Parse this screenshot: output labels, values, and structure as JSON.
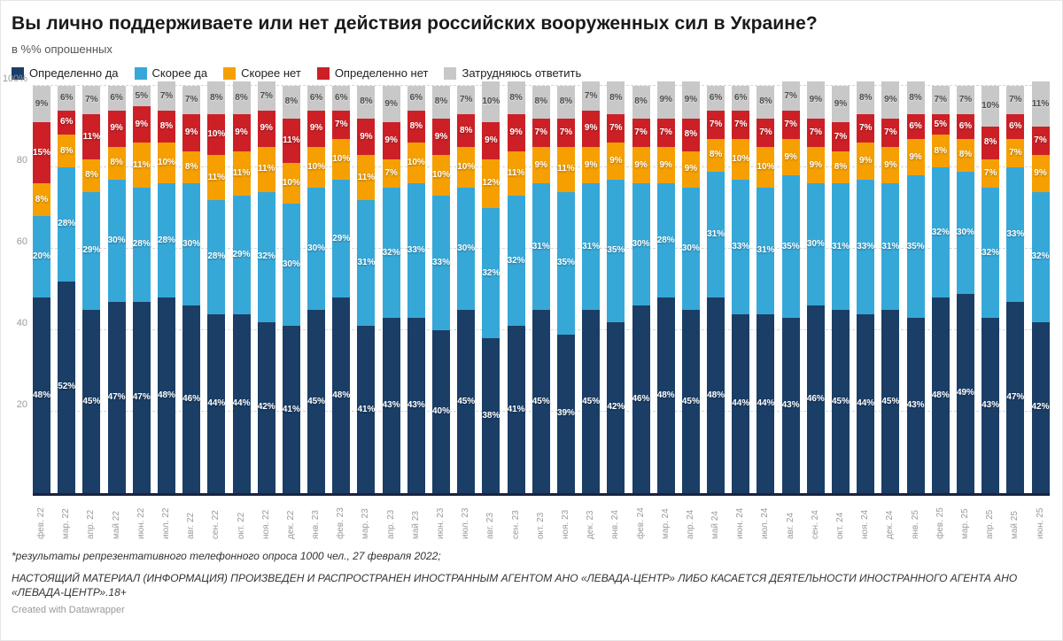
{
  "header": {
    "title": "Вы лично поддерживаете или нет действия российских вооруженных сил в Украине?",
    "subtitle": "в %% опрошенных"
  },
  "chart_data": {
    "type": "bar",
    "stacked": true,
    "value_suffix": "%",
    "ylim": [
      0,
      100
    ],
    "grid": "horizontal-dashed",
    "legend_position": "top",
    "yticks": [
      {
        "value": 100,
        "label": "100%"
      },
      {
        "value": 80,
        "label": "80"
      },
      {
        "value": 60,
        "label": "60"
      },
      {
        "value": 40,
        "label": "40"
      },
      {
        "value": 20,
        "label": "20"
      }
    ],
    "categories": [
      "фев. 22",
      "мар. 22",
      "апр. 22",
      "май 22",
      "июн. 22",
      "июл. 22",
      "авг. 22",
      "сен. 22",
      "окт. 22",
      "ноя. 22",
      "дек. 22",
      "янв. 23",
      "фев. 23",
      "мар. 23",
      "апр. 23",
      "май 23",
      "июн. 23",
      "июл. 23",
      "авг. 23",
      "сен. 23",
      "окт. 23",
      "ноя. 23",
      "дек. 23",
      "янв. 24",
      "фев. 24",
      "мар. 24",
      "апр. 24",
      "май 24",
      "июн. 24",
      "июл. 24",
      "авг. 24",
      "сен. 24",
      "окт. 24",
      "ноя. 24",
      "дек. 24",
      "янв. 25",
      "фев. 25",
      "мар. 25",
      "апр. 25",
      "май 25",
      "июн. 25"
    ],
    "series": [
      {
        "name": "Определенно да",
        "color": "#1a3e66",
        "label_style": "light",
        "values": [
          48,
          52,
          45,
          47,
          47,
          48,
          46,
          44,
          44,
          42,
          41,
          45,
          48,
          41,
          43,
          43,
          40,
          45,
          38,
          41,
          45,
          39,
          45,
          42,
          46,
          48,
          45,
          48,
          44,
          44,
          43,
          46,
          45,
          44,
          45,
          43,
          48,
          49,
          43,
          47,
          42
        ]
      },
      {
        "name": "Скорее да",
        "color": "#36a8d8",
        "label_style": "light",
        "values": [
          20,
          28,
          29,
          30,
          28,
          28,
          30,
          28,
          29,
          32,
          30,
          30,
          29,
          31,
          32,
          33,
          33,
          30,
          32,
          32,
          31,
          35,
          31,
          35,
          30,
          28,
          30,
          31,
          33,
          31,
          35,
          30,
          31,
          33,
          31,
          35,
          32,
          30,
          32,
          33,
          32
        ]
      },
      {
        "name": "Скорее нет",
        "color": "#f5a000",
        "label_style": "light",
        "values": [
          8,
          8,
          8,
          8,
          11,
          10,
          8,
          11,
          11,
          11,
          10,
          10,
          10,
          11,
          7,
          10,
          10,
          10,
          12,
          11,
          9,
          11,
          9,
          9,
          9,
          9,
          9,
          8,
          10,
          10,
          9,
          9,
          8,
          9,
          9,
          9,
          8,
          8,
          7,
          7,
          9
        ]
      },
      {
        "name": "Определенно нет",
        "color": "#cc2026",
        "label_style": "light",
        "values": [
          15,
          6,
          11,
          9,
          9,
          8,
          9,
          10,
          9,
          9,
          11,
          9,
          7,
          9,
          9,
          8,
          9,
          8,
          9,
          9,
          7,
          7,
          9,
          7,
          7,
          7,
          8,
          7,
          7,
          7,
          7,
          7,
          7,
          7,
          7,
          6,
          5,
          6,
          8,
          6,
          7
        ]
      },
      {
        "name": "Затрудняюсь ответить",
        "color": "#c8c8c8",
        "label_style": "dark",
        "values": [
          9,
          6,
          7,
          6,
          5,
          7,
          7,
          8,
          8,
          7,
          8,
          6,
          6,
          8,
          9,
          6,
          8,
          7,
          10,
          8,
          8,
          8,
          7,
          8,
          8,
          9,
          9,
          6,
          6,
          8,
          7,
          9,
          9,
          8,
          9,
          8,
          7,
          7,
          10,
          7,
          11
        ]
      }
    ]
  },
  "footer": {
    "note1": "*результаты репрезентативного телефонного опроса 1000 чел., 27 февраля 2022;",
    "note2": "НАСТОЯЩИЙ МАТЕРИАЛ (ИНФОРМАЦИЯ) ПРОИЗВЕДЕН И РАСПРОСТРАНЕН ИНОСТРАННЫМ АГЕНТОМ АНО «ЛЕВАДА-ЦЕНТР» ЛИБО КАСАЕТСЯ ДЕЯТЕЛЬНОСТИ ИНОСТРАННОГО АГЕНТА АНО «ЛЕВАДА-ЦЕНТР».18+",
    "credit": "Created with Datawrapper"
  }
}
